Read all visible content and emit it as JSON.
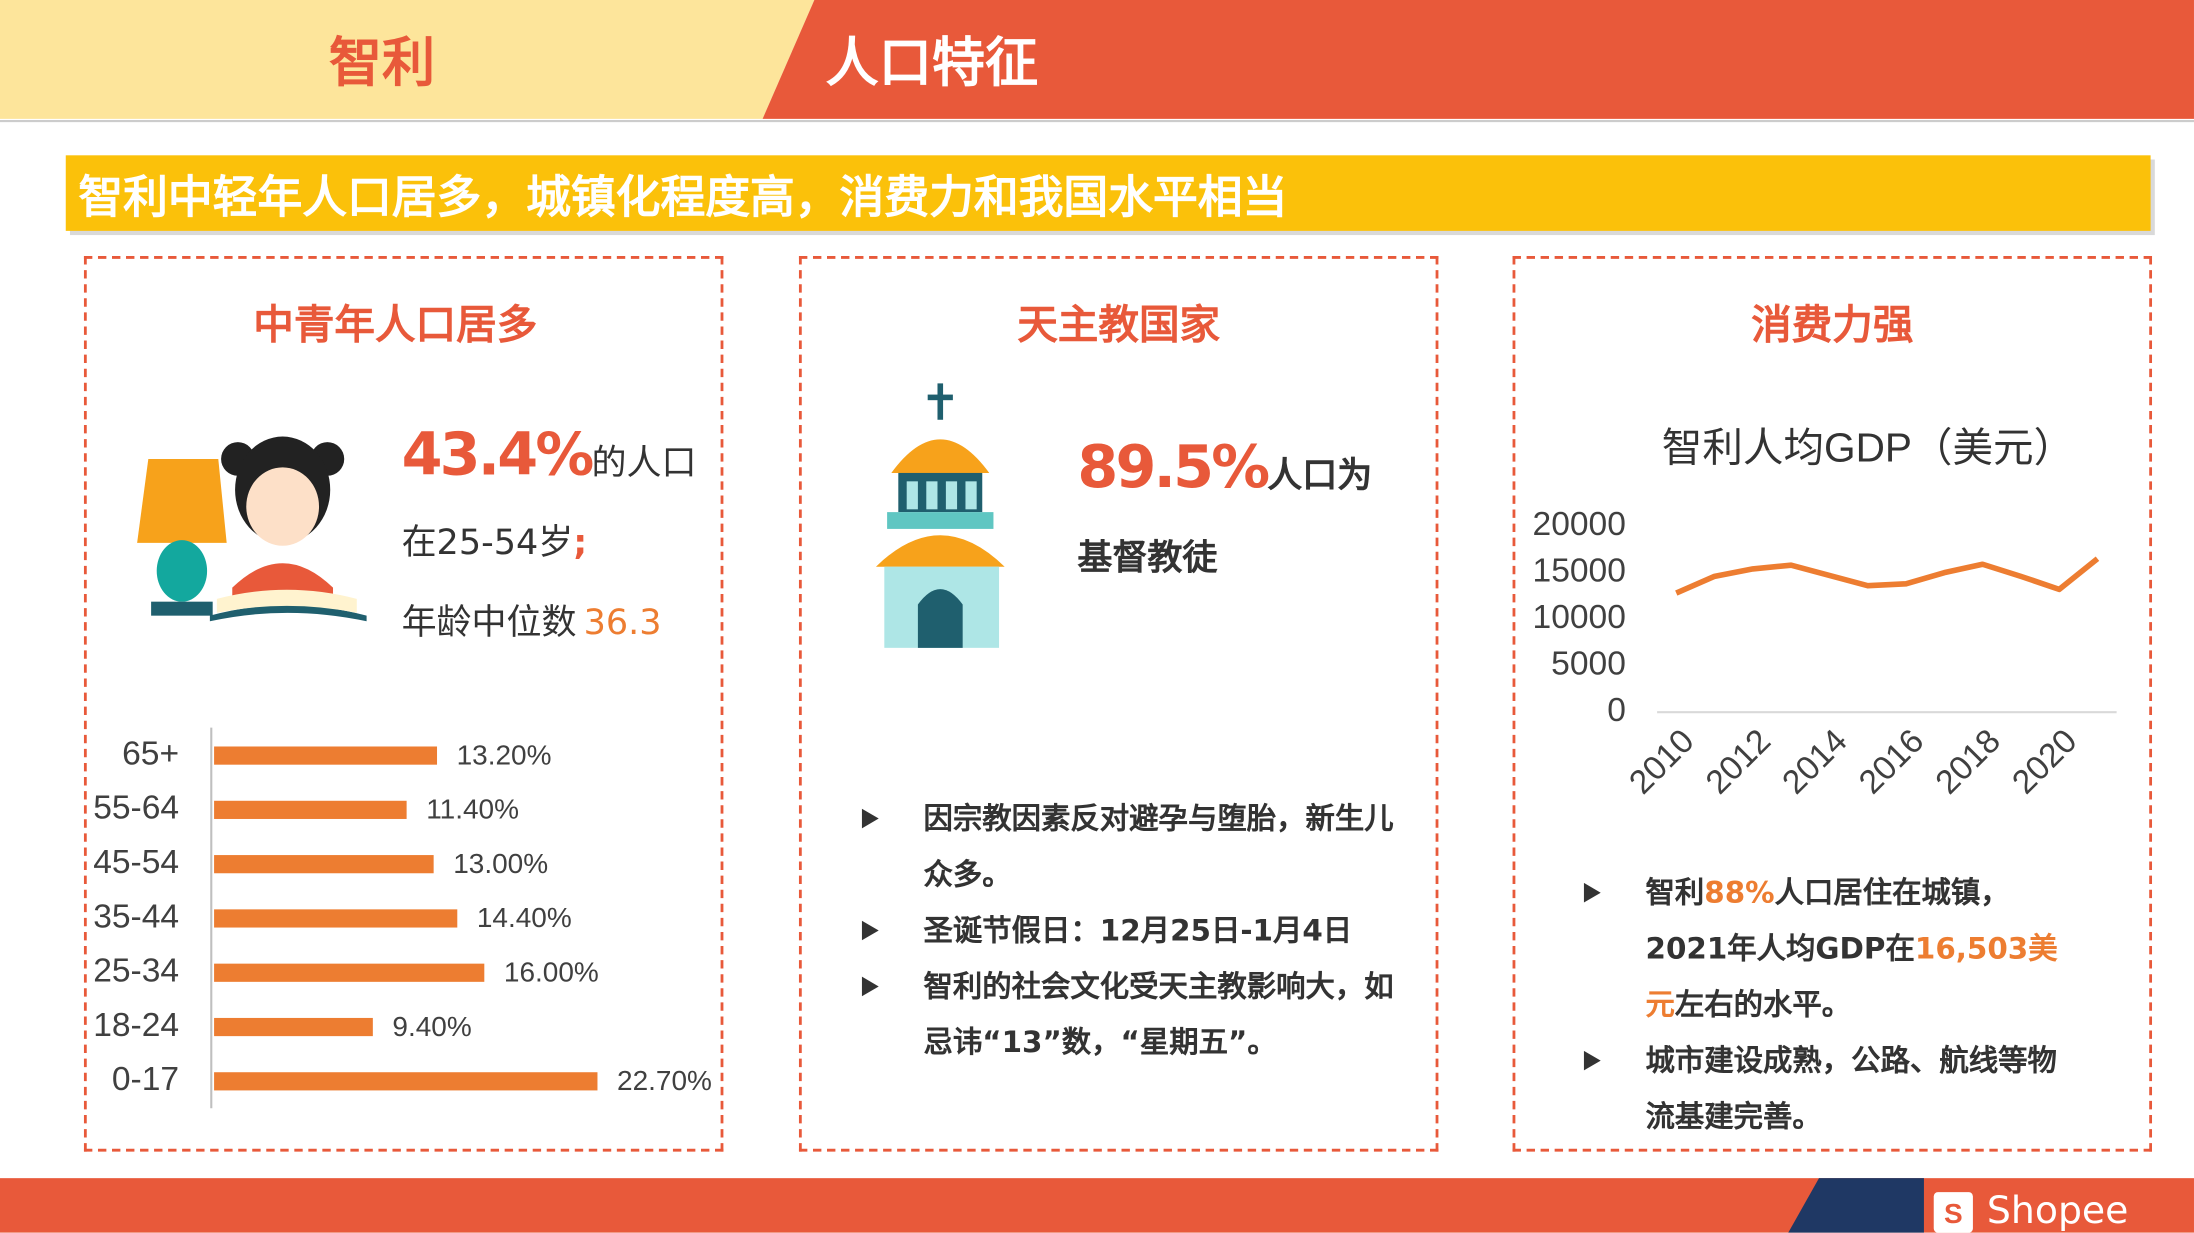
{
  "header": {
    "country": "智利",
    "title": "人口特征"
  },
  "banner": "智利中轻年人口居多，城镇化程度高，消费力和我国水平相当",
  "panels": [
    {
      "title": "中青年人口居多",
      "stat": "43.4%",
      "stat_text": "的人口",
      "line2": "在25-54岁",
      "line2_mark": ";",
      "line3": "年龄中位数",
      "line3_value": "36.3"
    },
    {
      "title": "天主教国家",
      "stat": "89.5%",
      "stat_text": "人口为基督教徒",
      "bullets": [
        "因宗教因素反对避孕与堕胎，新生儿众多。",
        "圣诞节假日：12月25日-1月4日",
        "智利的社会文化受天主教影响大，如忌讳“13”数，“星期五”。"
      ]
    },
    {
      "title": "消费力强",
      "bullets": [
        [
          "智利",
          "88%",
          "人口居住在城镇，2021年人均GDP在",
          "16,503美元",
          "左右的水平。"
        ],
        [
          "城市建设成熟，公路、航线等物流基建完善。"
        ]
      ]
    }
  ],
  "footer": {
    "brand": "Shopee"
  },
  "chart_data": [
    {
      "type": "hbar",
      "categories": [
        "65+",
        "55-64",
        "45-54",
        "35-44",
        "25-34",
        "18-24",
        "0-17"
      ],
      "values": [
        13.2,
        11.4,
        13.0,
        14.4,
        16.0,
        9.4,
        22.7
      ],
      "value_labels": [
        "13.20%",
        "11.40%",
        "13.00%",
        "14.40%",
        "16.00%",
        "9.40%",
        "22.70%"
      ],
      "color": "#ed7d31"
    },
    {
      "type": "line",
      "title": "智利人均GDP（美元）",
      "x": [
        2010,
        2011,
        2012,
        2013,
        2014,
        2015,
        2016,
        2017,
        2018,
        2019,
        2020,
        2021
      ],
      "series": [
        {
          "name": "人均GDP",
          "color": "#ed7d31",
          "values": [
            12800,
            14600,
            15400,
            15800,
            14700,
            13600,
            13800,
            15000,
            15900,
            14600,
            13200,
            16500
          ]
        }
      ],
      "xlim": [
        2009.5,
        2021.5
      ],
      "xticks": [
        2010,
        2012,
        2014,
        2016,
        2018,
        2020
      ],
      "ylim": [
        0,
        20000
      ],
      "yticks": [
        0,
        5000,
        10000,
        15000,
        20000
      ]
    }
  ]
}
